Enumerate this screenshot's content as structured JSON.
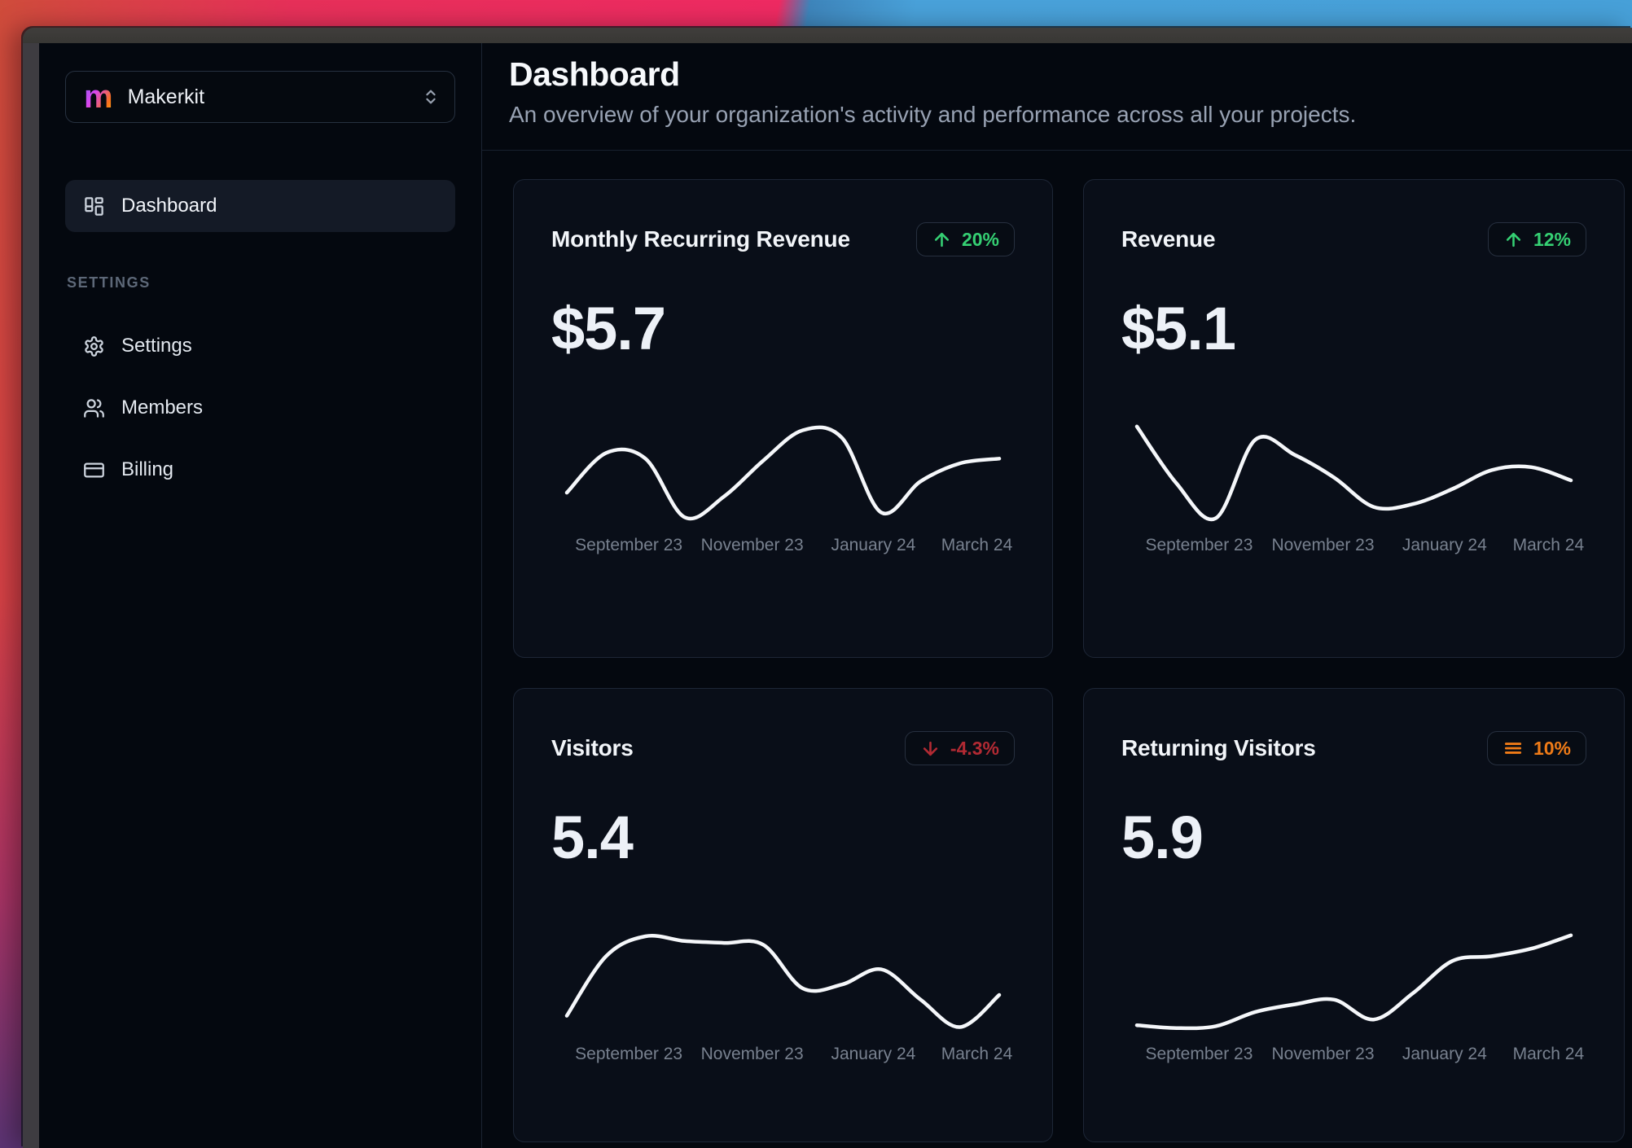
{
  "workspace": {
    "logo_letter": "m",
    "name": "Makerkit"
  },
  "sidebar": {
    "nav": [
      {
        "label": "Dashboard",
        "icon": "layout-dashboard-icon",
        "active": true
      }
    ],
    "section_label": "SETTINGS",
    "settings_nav": [
      {
        "label": "Settings",
        "icon": "gear-icon"
      },
      {
        "label": "Members",
        "icon": "users-icon"
      },
      {
        "label": "Billing",
        "icon": "credit-card-icon"
      }
    ]
  },
  "header": {
    "title": "Dashboard",
    "subtitle": "An overview of your organization's activity and performance across all your projects."
  },
  "colors": {
    "positive": "#35d073",
    "negative": "#b22a33",
    "neutral": "#ef7b17",
    "line": "#f5f7fa"
  },
  "cards": [
    {
      "title": "Monthly Recurring Revenue",
      "value": "$5.7",
      "badge": {
        "text": "20%",
        "trend": "up",
        "color": "#35d073",
        "icon": "arrow-up-icon"
      }
    },
    {
      "title": "Revenue",
      "value": "$5.1",
      "badge": {
        "text": "12%",
        "trend": "up",
        "color": "#35d073",
        "icon": "arrow-up-icon"
      }
    },
    {
      "title": "Visitors",
      "value": "5.4",
      "badge": {
        "text": "-4.3%",
        "trend": "down",
        "color": "#b22a33",
        "icon": "arrow-down-icon"
      }
    },
    {
      "title": "Returning Visitors",
      "value": "5.9",
      "badge": {
        "text": "10%",
        "trend": "flat",
        "color": "#ef7b17",
        "icon": "menu-lines-icon"
      }
    }
  ],
  "chart_data": [
    {
      "type": "line",
      "title": "Monthly Recurring Revenue sparkline",
      "x_ticks": [
        "September 23",
        "November 23",
        "January 24",
        "March 24"
      ],
      "values": [
        3.0,
        7.2,
        6.6,
        0.4,
        2.6,
        6.4,
        9.6,
        8.8,
        0.9,
        4.2,
        6.1,
        6.6
      ],
      "ylim": [
        0,
        10.5
      ],
      "grid": false,
      "legend": false,
      "line_color": "#f5f7fa"
    },
    {
      "type": "line",
      "title": "Revenue sparkline",
      "x_ticks": [
        "September 23",
        "November 23",
        "January 24",
        "March 24"
      ],
      "values": [
        10,
        4.0,
        0.3,
        8.6,
        7.0,
        4.6,
        1.5,
        1.8,
        3.4,
        5.4,
        5.7,
        4.3
      ],
      "ylim": [
        0,
        10.5
      ],
      "grid": false,
      "legend": false,
      "line_color": "#f5f7fa"
    },
    {
      "type": "line",
      "title": "Visitors sparkline",
      "x_ticks": [
        "September 23",
        "November 23",
        "January 24",
        "March 24"
      ],
      "values": [
        1.5,
        7.8,
        9.9,
        9.4,
        9.2,
        9.0,
        4.4,
        4.8,
        6.4,
        3.2,
        0.3,
        3.7
      ],
      "ylim": [
        0,
        10.5
      ],
      "grid": false,
      "legend": false,
      "line_color": "#f5f7fa"
    },
    {
      "type": "line",
      "title": "Returning Visitors sparkline",
      "x_ticks": [
        "September 23",
        "November 23",
        "January 24",
        "March 24"
      ],
      "values": [
        0.5,
        0.2,
        0.4,
        1.9,
        2.7,
        3.2,
        1.1,
        3.9,
        7.3,
        7.8,
        8.6,
        10
      ],
      "ylim": [
        0,
        10.5
      ],
      "grid": false,
      "legend": false,
      "line_color": "#f5f7fa"
    }
  ]
}
